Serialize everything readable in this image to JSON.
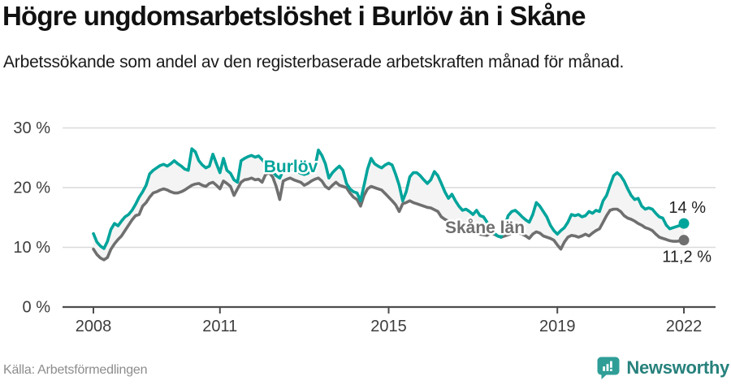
{
  "header": {
    "title": "Högre ungdomsarbetslöshet i Burlöv än i Skåne",
    "subtitle": "Arbetssökande som andel av den registerbaserade arbetskraften månad för månad."
  },
  "footer": {
    "source": "Källa: Arbetsförmedlingen",
    "brand": "Newsworthy"
  },
  "colors": {
    "burlov": "#00a49b",
    "skane": "#6f6f6f",
    "band": "#f4f4f4",
    "grid": "#dadada",
    "axis": "#4d4d4d",
    "tick_text": "#3d3d3d",
    "end_label_text": "#222222",
    "logo_icon": "#2f9e97",
    "logo_text": "#27817c"
  },
  "chart_data": {
    "type": "line",
    "title": "Högre ungdomsarbetslöshet i Burlöv än i Skåne",
    "subtitle": "Arbetssökande som andel av den registerbaserade arbetskraften månad för månad.",
    "unit": "percent of registered labour force",
    "frequency": "monthly",
    "x_start": "2008-01",
    "x_end": "2022-01",
    "ylim": [
      0,
      30
    ],
    "grid": "horizontal",
    "legend_position": "inline-labels",
    "y_ticks": [
      {
        "label": "0 %",
        "value": 0
      },
      {
        "label": "10 %",
        "value": 10
      },
      {
        "label": "20 %",
        "value": 20
      },
      {
        "label": "30 %",
        "value": 30
      }
    ],
    "x_ticks": [
      {
        "label": "2008",
        "month_index": 0
      },
      {
        "label": "2011",
        "month_index": 36
      },
      {
        "label": "2015",
        "month_index": 84
      },
      {
        "label": "2019",
        "month_index": 132
      },
      {
        "label": "2022",
        "month_index": 168
      }
    ],
    "band_fill_between_series": true,
    "series": [
      {
        "name": "Burlöv",
        "color": "#00a49b",
        "end_label": "14 %",
        "last_value": 14.0,
        "values": [
          12.3,
          10.9,
          10.2,
          9.8,
          11.0,
          13.0,
          14.0,
          13.6,
          14.4,
          15.1,
          15.5,
          16.2,
          17.2,
          18.4,
          19.3,
          20.4,
          22.3,
          22.9,
          23.3,
          23.7,
          23.9,
          23.6,
          24.0,
          24.5,
          24.0,
          23.6,
          23.1,
          22.9,
          26.5,
          26.0,
          24.5,
          23.8,
          23.3,
          23.6,
          25.6,
          24.0,
          22.5,
          24.9,
          22.9,
          22.4,
          21.3,
          20.9,
          24.5,
          24.9,
          25.2,
          25.4,
          25.1,
          25.3,
          24.7,
          24.0,
          23.3,
          22.7,
          22.0,
          21.6,
          22.9,
          23.3,
          23.1,
          22.9,
          22.7,
          22.4,
          22.2,
          22.4,
          22.9,
          23.3,
          26.3,
          25.4,
          24.0,
          21.6,
          22.5,
          23.1,
          23.6,
          22.9,
          20.7,
          19.8,
          19.3,
          19.1,
          17.8,
          20.4,
          23.1,
          24.9,
          24.0,
          23.6,
          23.3,
          23.8,
          24.1,
          23.8,
          22.2,
          20.4,
          17.8,
          19.3,
          21.8,
          22.5,
          22.5,
          22.0,
          21.3,
          20.7,
          21.3,
          22.7,
          22.0,
          20.7,
          19.3,
          18.2,
          18.9,
          17.8,
          16.9,
          16.2,
          16.4,
          16.0,
          15.5,
          16.2,
          15.3,
          15.1,
          14.2,
          13.3,
          12.4,
          11.9,
          11.7,
          13.5,
          15.3,
          16.0,
          16.2,
          15.7,
          15.1,
          14.6,
          14.2,
          15.5,
          17.5,
          16.9,
          16.0,
          15.1,
          13.7,
          12.8,
          12.2,
          12.8,
          13.3,
          14.2,
          15.5,
          15.3,
          15.5,
          15.1,
          15.3,
          16.0,
          15.7,
          16.2,
          16.0,
          17.8,
          18.7,
          20.4,
          22.0,
          22.5,
          22.0,
          21.1,
          19.8,
          18.7,
          18.0,
          18.2,
          16.9,
          16.4,
          16.6,
          16.4,
          15.7,
          15.1,
          14.9,
          13.7,
          13.1,
          13.3,
          13.5,
          13.7,
          14.0
        ]
      },
      {
        "name": "Skåne län",
        "color": "#6f6f6f",
        "end_label": "11,2 %",
        "last_value": 11.2,
        "values": [
          9.7,
          8.8,
          8.2,
          7.9,
          8.3,
          9.7,
          10.6,
          11.3,
          11.9,
          12.8,
          13.7,
          14.6,
          15.3,
          15.5,
          16.9,
          17.5,
          18.4,
          19.1,
          19.3,
          19.6,
          19.8,
          19.6,
          19.3,
          19.1,
          19.1,
          19.3,
          19.6,
          20.0,
          20.4,
          20.6,
          20.7,
          20.4,
          20.2,
          20.7,
          20.9,
          20.4,
          19.8,
          21.1,
          20.7,
          20.2,
          18.7,
          19.8,
          20.9,
          21.3,
          21.4,
          21.6,
          21.3,
          21.4,
          20.9,
          22.2,
          22.5,
          21.8,
          20.2,
          18.0,
          21.1,
          21.4,
          21.6,
          21.3,
          21.1,
          20.9,
          20.4,
          20.7,
          21.1,
          21.4,
          21.6,
          21.1,
          20.2,
          19.8,
          20.4,
          20.9,
          20.4,
          20.2,
          20.0,
          19.1,
          18.4,
          18.0,
          16.9,
          18.7,
          19.8,
          20.2,
          20.0,
          19.8,
          19.6,
          19.0,
          18.4,
          17.8,
          17.1,
          16.0,
          17.3,
          17.5,
          17.8,
          17.5,
          17.3,
          17.1,
          16.9,
          16.7,
          16.6,
          16.3,
          16.0,
          15.1,
          14.7,
          14.4,
          14.0,
          13.7,
          13.4,
          13.1,
          12.9,
          12.8,
          12.6,
          12.4,
          12.2,
          12.1,
          12.0,
          12.4,
          12.2,
          11.9,
          11.7,
          11.9,
          12.1,
          12.4,
          12.6,
          12.4,
          12.2,
          11.9,
          11.5,
          12.2,
          12.6,
          12.4,
          11.9,
          11.7,
          11.5,
          11.2,
          10.4,
          9.7,
          10.9,
          11.7,
          12.0,
          11.9,
          11.7,
          11.9,
          12.2,
          11.9,
          12.4,
          12.8,
          13.1,
          14.2,
          15.3,
          16.2,
          16.4,
          16.4,
          16.0,
          15.3,
          14.9,
          14.7,
          14.4,
          14.0,
          13.7,
          13.3,
          13.1,
          12.8,
          12.2,
          11.7,
          11.5,
          11.3,
          11.1,
          11.0,
          11.0,
          11.1,
          11.2
        ]
      }
    ]
  }
}
